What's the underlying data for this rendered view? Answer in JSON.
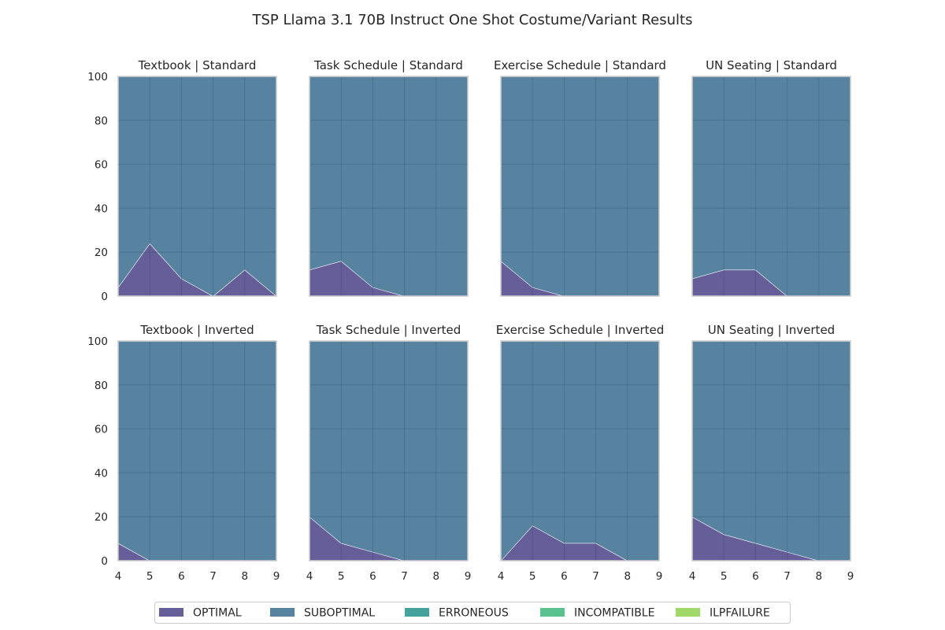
{
  "chart_data": {
    "type": "area",
    "stacked": true,
    "title": "TSP Llama 3.1 70B Instruct One Shot Costume/Variant Results",
    "x": [
      4,
      5,
      6,
      7,
      8,
      9
    ],
    "xlim": [
      4,
      9
    ],
    "ylim": [
      0,
      100
    ],
    "xticks": [
      4,
      5,
      6,
      7,
      8,
      9
    ],
    "yticks": [
      0,
      20,
      40,
      60,
      80,
      100
    ],
    "grid": true,
    "legend_position": "bottom-center",
    "legend": [
      {
        "name": "OPTIMAL",
        "color": "#655e98"
      },
      {
        "name": "SUBOPTIMAL",
        "color": "#5783a1"
      },
      {
        "name": "ERRONEOUS",
        "color": "#43a19e"
      },
      {
        "name": "INCOMPATIBLE",
        "color": "#5bc28f"
      },
      {
        "name": "ILPFAILURE",
        "color": "#a0d96a"
      }
    ],
    "panels": [
      {
        "title": "Textbook | Standard",
        "series": {
          "OPTIMAL": [
            4,
            24,
            8,
            0,
            12,
            0
          ],
          "SUBOPTIMAL": [
            96,
            76,
            92,
            100,
            88,
            100
          ],
          "ERRONEOUS": [
            0,
            0,
            0,
            0,
            0,
            0
          ],
          "INCOMPATIBLE": [
            0,
            0,
            0,
            0,
            0,
            0
          ],
          "ILPFAILURE": [
            0,
            0,
            0,
            0,
            0,
            0
          ]
        }
      },
      {
        "title": "Task Schedule | Standard",
        "series": {
          "OPTIMAL": [
            12,
            16,
            4,
            0,
            0,
            0
          ],
          "SUBOPTIMAL": [
            88,
            84,
            96,
            100,
            100,
            100
          ],
          "ERRONEOUS": [
            0,
            0,
            0,
            0,
            0,
            0
          ],
          "INCOMPATIBLE": [
            0,
            0,
            0,
            0,
            0,
            0
          ],
          "ILPFAILURE": [
            0,
            0,
            0,
            0,
            0,
            0
          ]
        }
      },
      {
        "title": "Exercise Schedule | Standard",
        "series": {
          "OPTIMAL": [
            16,
            4,
            0,
            0,
            0,
            0
          ],
          "SUBOPTIMAL": [
            84,
            96,
            100,
            100,
            100,
            100
          ],
          "ERRONEOUS": [
            0,
            0,
            0,
            0,
            0,
            0
          ],
          "INCOMPATIBLE": [
            0,
            0,
            0,
            0,
            0,
            0
          ],
          "ILPFAILURE": [
            0,
            0,
            0,
            0,
            0,
            0
          ]
        }
      },
      {
        "title": "UN Seating | Standard",
        "series": {
          "OPTIMAL": [
            8,
            12,
            12,
            0,
            0,
            0
          ],
          "SUBOPTIMAL": [
            92,
            88,
            88,
            100,
            100,
            100
          ],
          "ERRONEOUS": [
            0,
            0,
            0,
            0,
            0,
            0
          ],
          "INCOMPATIBLE": [
            0,
            0,
            0,
            0,
            0,
            0
          ],
          "ILPFAILURE": [
            0,
            0,
            0,
            0,
            0,
            0
          ]
        }
      },
      {
        "title": "Textbook | Inverted",
        "series": {
          "OPTIMAL": [
            8,
            0,
            0,
            0,
            0,
            0
          ],
          "SUBOPTIMAL": [
            92,
            100,
            100,
            100,
            100,
            100
          ],
          "ERRONEOUS": [
            0,
            0,
            0,
            0,
            0,
            0
          ],
          "INCOMPATIBLE": [
            0,
            0,
            0,
            0,
            0,
            0
          ],
          "ILPFAILURE": [
            0,
            0,
            0,
            0,
            0,
            0
          ]
        }
      },
      {
        "title": "Task Schedule | Inverted",
        "series": {
          "OPTIMAL": [
            20,
            8,
            4,
            0,
            0,
            0
          ],
          "SUBOPTIMAL": [
            80,
            92,
            96,
            100,
            100,
            100
          ],
          "ERRONEOUS": [
            0,
            0,
            0,
            0,
            0,
            0
          ],
          "INCOMPATIBLE": [
            0,
            0,
            0,
            0,
            0,
            0
          ],
          "ILPFAILURE": [
            0,
            0,
            0,
            0,
            0,
            0
          ]
        }
      },
      {
        "title": "Exercise Schedule | Inverted",
        "series": {
          "OPTIMAL": [
            0,
            16,
            8,
            8,
            0,
            0
          ],
          "SUBOPTIMAL": [
            100,
            84,
            92,
            92,
            100,
            100
          ],
          "ERRONEOUS": [
            0,
            0,
            0,
            0,
            0,
            0
          ],
          "INCOMPATIBLE": [
            0,
            0,
            0,
            0,
            0,
            0
          ],
          "ILPFAILURE": [
            0,
            0,
            0,
            0,
            0,
            0
          ]
        }
      },
      {
        "title": "UN Seating | Inverted",
        "series": {
          "OPTIMAL": [
            20,
            12,
            8,
            4,
            0,
            0
          ],
          "SUBOPTIMAL": [
            80,
            88,
            92,
            96,
            100,
            100
          ],
          "ERRONEOUS": [
            0,
            0,
            0,
            0,
            0,
            0
          ],
          "INCOMPATIBLE": [
            0,
            0,
            0,
            0,
            0,
            0
          ],
          "ILPFAILURE": [
            0,
            0,
            0,
            0,
            0,
            0
          ]
        }
      }
    ]
  }
}
